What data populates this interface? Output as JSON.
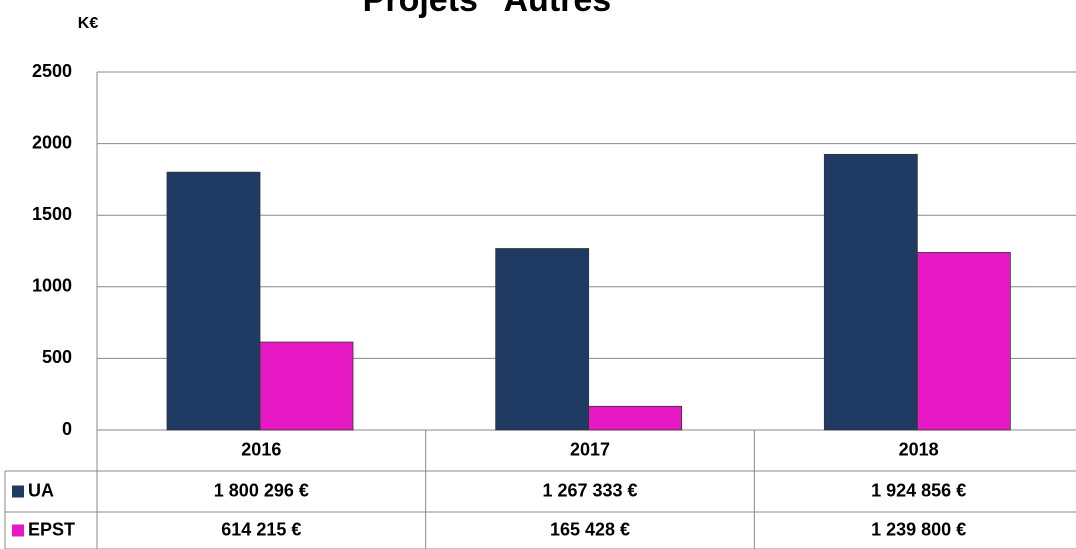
{
  "chart_data": {
    "type": "bar",
    "title": "Projets \"Autres\"",
    "y_label": "K€",
    "categories": [
      "2016",
      "2017",
      "2018"
    ],
    "series": [
      {
        "name": "UA",
        "color": "#1f3b63",
        "values": [
          1800.296,
          1267.333,
          1924.856
        ],
        "value_labels": [
          "1 800 296 €",
          "1 267 333 €",
          "1 924 856 €"
        ]
      },
      {
        "name": "EPST",
        "color": "#e619c4",
        "values": [
          614.215,
          165.428,
          1239.8
        ],
        "value_labels": [
          "614 215 €",
          "165 428 €",
          "1 239 800 €"
        ]
      }
    ],
    "ylim": [
      0,
      2500
    ],
    "yticks": [
      0,
      500,
      1000,
      1500,
      2000,
      2500
    ],
    "grid": true
  }
}
